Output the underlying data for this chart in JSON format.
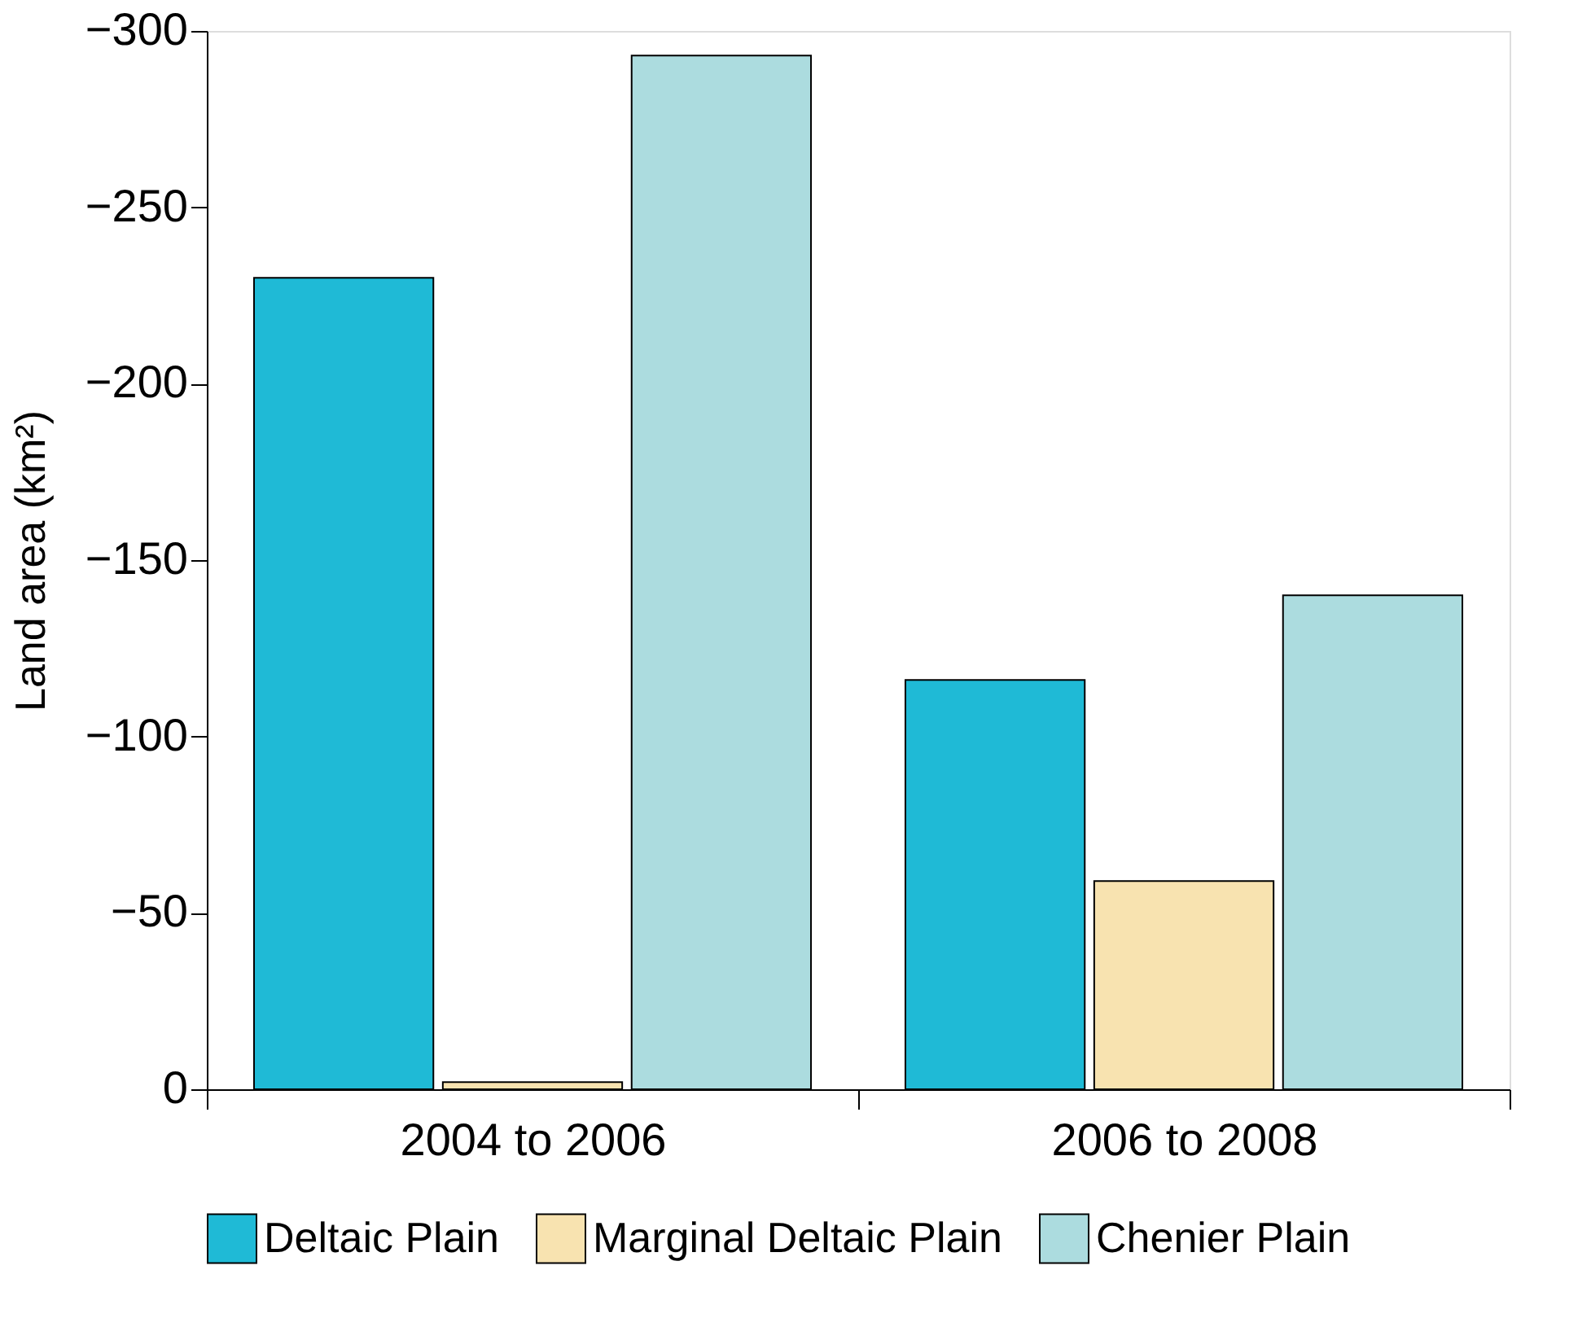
{
  "chart_data": {
    "type": "bar",
    "ylabel": "Land area (km²)",
    "categories": [
      "2004 to 2006",
      "2006 to 2008"
    ],
    "series": [
      {
        "name": "Deltaic Plain",
        "color": "#1fbad6",
        "values": [
          -230,
          -116
        ]
      },
      {
        "name": "Marginal Deltaic Plain",
        "color": "#f8e3b0",
        "values": [
          -2,
          -59
        ]
      },
      {
        "name": "Chenier Plain",
        "color": "#acdcdf",
        "values": [
          -293,
          -140
        ]
      }
    ],
    "ylim": [
      0,
      -300
    ],
    "yticks": [
      0,
      -50,
      -100,
      -150,
      -200,
      -250,
      -300
    ],
    "grid": false,
    "legend": "bottom"
  }
}
